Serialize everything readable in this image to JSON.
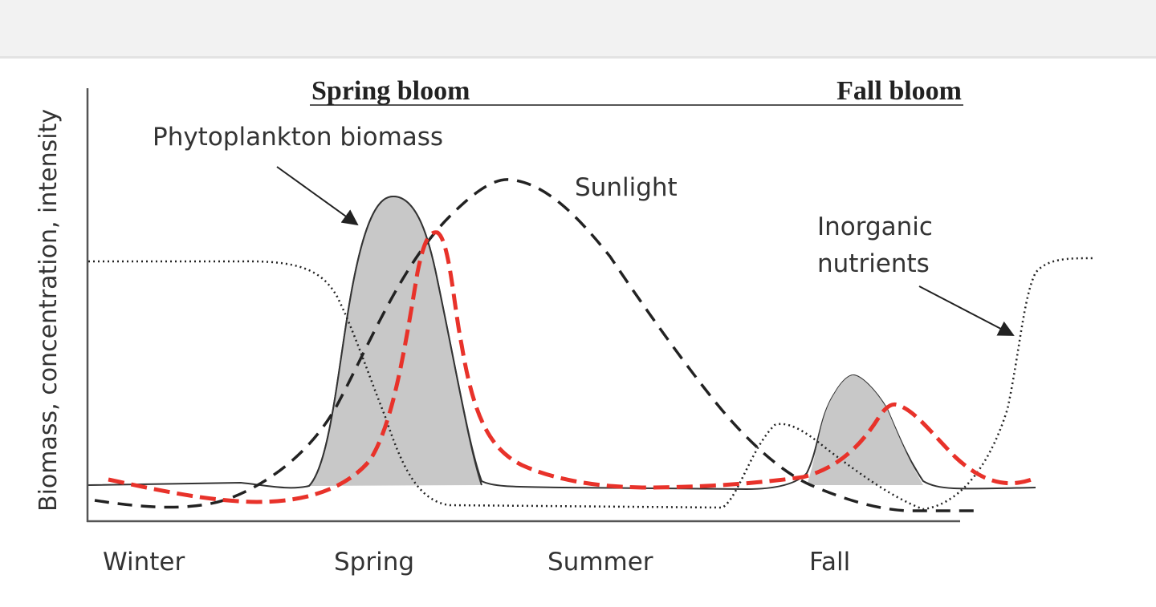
{
  "bloom_labels": {
    "spring": "Spring bloom",
    "fall": "Fall bloom"
  },
  "annotations": {
    "phytoplankton": "Phytoplankton biomass",
    "sunlight": "Sunlight",
    "nutrients_line1": "Inorganic",
    "nutrients_line2": "nutrients"
  },
  "axis": {
    "ylabel": "Biomass, concentration, intensity"
  },
  "seasons": [
    "Winter",
    "Spring",
    "Summer",
    "Fall"
  ],
  "colors": {
    "phytoplankton_fill": "#c8c8c8",
    "highlight_curve": "#e8322a",
    "sunlight": "#222222",
    "nutrients": "#222222",
    "axis": "#555555"
  }
}
